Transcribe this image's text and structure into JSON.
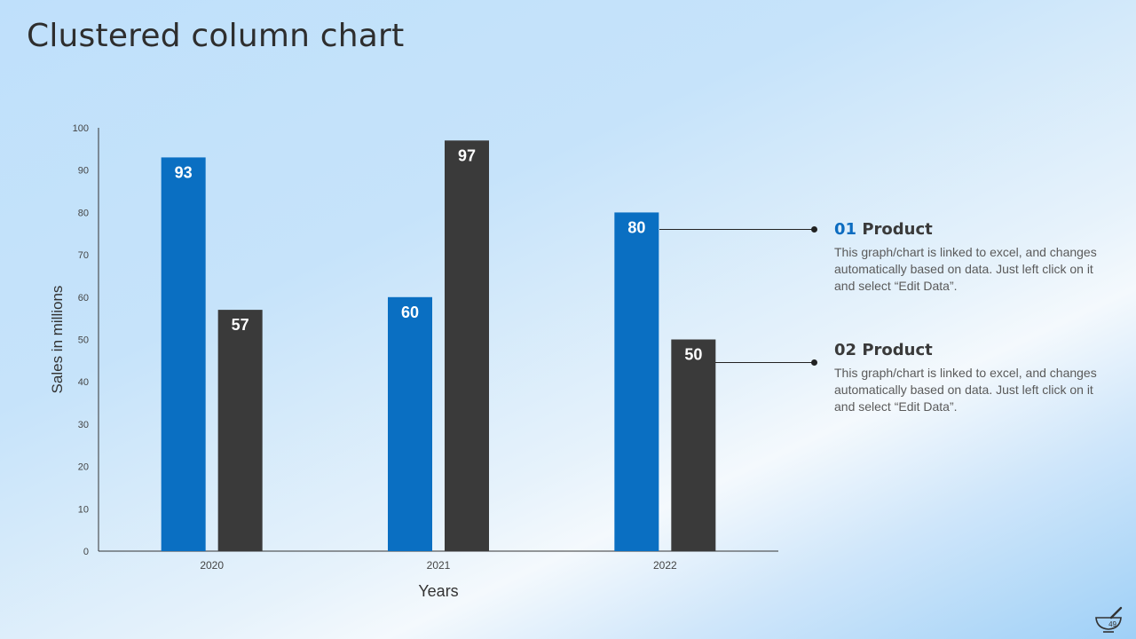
{
  "slide": {
    "title": "Clustered column chart",
    "page_number": "49"
  },
  "colors": {
    "product_01": "#0a6fc2",
    "product_02": "#3a3a3a"
  },
  "legend": [
    {
      "number": "01",
      "label": "Product",
      "description": "This graph/chart is linked to excel, and changes automatically based on data. Just left click on it and select “Edit Data”."
    },
    {
      "number": "02",
      "label": "Product",
      "description": "This graph/chart is linked to excel, and changes automatically based on data. Just left click on it and select “Edit Data”."
    }
  ],
  "icons": {
    "logo": "mortar-pestle-icon"
  },
  "chart_data": {
    "type": "bar",
    "categories": [
      "2020",
      "2021",
      "2022"
    ],
    "series": [
      {
        "values": [
          93,
          60,
          80
        ],
        "color": "#0a6fc2"
      },
      {
        "values": [
          57,
          97,
          50
        ],
        "color": "#3a3a3a"
      }
    ],
    "xlabel": "Years",
    "ylabel": "Sales in millions",
    "ylim": [
      0,
      100
    ],
    "yticks": [
      0,
      10,
      20,
      30,
      40,
      50,
      60,
      70,
      80,
      90,
      100
    ],
    "grid": false,
    "data_labels": true,
    "legend_placement": "right"
  }
}
